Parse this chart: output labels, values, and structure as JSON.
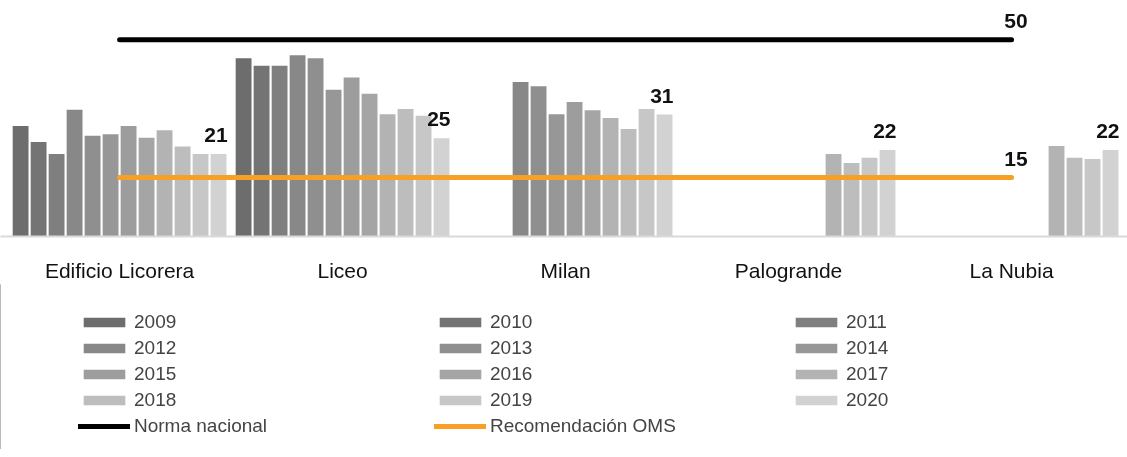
{
  "chart_data": {
    "type": "bar",
    "categories": [
      "Edificio Licorera",
      "Liceo",
      "Milan",
      "Palogrande",
      "La Nubia"
    ],
    "series": [
      {
        "name": "2009",
        "color": "#6d6d6d",
        "values": [
          28.1,
          45.3,
          null,
          null,
          null
        ]
      },
      {
        "name": "2010",
        "color": "#747474",
        "values": [
          24.0,
          43.4,
          null,
          null,
          null
        ]
      },
      {
        "name": "2011",
        "color": "#7f7f7f",
        "values": [
          21.0,
          43.4,
          null,
          null,
          null
        ]
      },
      {
        "name": "2012",
        "color": "#888888",
        "values": [
          32.2,
          46.1,
          39.3,
          null,
          null
        ]
      },
      {
        "name": "2013",
        "color": "#8f8f8f",
        "values": [
          25.6,
          45.3,
          38.2,
          null,
          null
        ]
      },
      {
        "name": "2014",
        "color": "#979797",
        "values": [
          26.0,
          37.3,
          31.1,
          null,
          null
        ]
      },
      {
        "name": "2015",
        "color": "#9d9d9d",
        "values": [
          28.1,
          40.4,
          34.2,
          null,
          null
        ]
      },
      {
        "name": "2016",
        "color": "#a5a5a5",
        "values": [
          25.1,
          36.3,
          32.1,
          null,
          null
        ]
      },
      {
        "name": "2017",
        "color": "#b3b3b3",
        "values": [
          27.0,
          31.1,
          30.1,
          21.0,
          23.0
        ]
      },
      {
        "name": "2018",
        "color": "#bdbdbd",
        "values": [
          22.9,
          32.4,
          27.3,
          18.7,
          20.0
        ]
      },
      {
        "name": "2019",
        "color": "#c7c7c7",
        "values": [
          21.0,
          30.7,
          32.4,
          20.0,
          19.7
        ]
      },
      {
        "name": "2020",
        "color": "#d2d2d2",
        "values": [
          21,
          25,
          31,
          22,
          22
        ],
        "value_labels": [
          "21",
          "25",
          "31",
          "22",
          "22"
        ]
      },
      {
        "name": "Norma nacional",
        "type": "line",
        "color": "#000000",
        "values": [
          50,
          50,
          50,
          50,
          50
        ],
        "value_labels": [
          null,
          null,
          null,
          null,
          "50"
        ]
      },
      {
        "name": "Recomendación OMS",
        "type": "line",
        "color": "#f7a028",
        "values": [
          15,
          15,
          15,
          15,
          15
        ],
        "value_labels": [
          null,
          null,
          null,
          null,
          "15"
        ]
      }
    ],
    "legend": "bottom",
    "tick_labels": "x",
    "grid": false
  }
}
